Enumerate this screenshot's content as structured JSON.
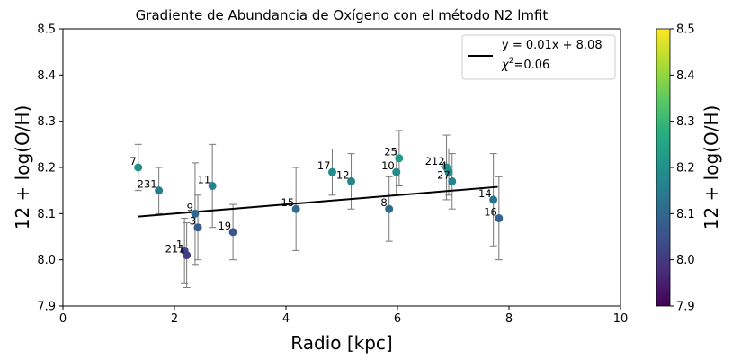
{
  "chart_data": {
    "type": "scatter",
    "title": "Gradiente de Abundancia de Oxígeno con el método N2 lmfit",
    "xlabel": "Radio [kpc]",
    "ylabel": "12 + log(O/H)",
    "xlim": [
      0,
      10
    ],
    "ylim": [
      7.9,
      8.5
    ],
    "xticks": [
      "0",
      "2",
      "4",
      "6",
      "8",
      "10"
    ],
    "yticks": [
      "7.9",
      "8.0",
      "8.1",
      "8.2",
      "8.3",
      "8.4",
      "8.5"
    ],
    "grid": false,
    "legend_position": "top-right",
    "fit": {
      "slope": 0.01,
      "intercept": 8.08,
      "label": "y = 0.01x + 8.08",
      "chi2_label": "=0.06",
      "chi2_symbol": "χ",
      "x_range": [
        1.35,
        7.8
      ]
    },
    "colorbar": {
      "label": "12 + log(O/H)",
      "range": [
        7.9,
        8.5
      ],
      "ticks": [
        "7.9",
        "8.0",
        "8.1",
        "8.2",
        "8.3",
        "8.4",
        "8.5"
      ],
      "colormap": "viridis"
    },
    "points": [
      {
        "label": "7",
        "x": 1.35,
        "y": 8.2,
        "yerr_low": 0.05,
        "yerr_high": 0.05
      },
      {
        "label": "231",
        "x": 1.72,
        "y": 8.15,
        "yerr_low": 0.05,
        "yerr_high": 0.05
      },
      {
        "label": "1",
        "x": 2.18,
        "y": 8.02,
        "yerr_low": 0.07,
        "yerr_high": 0.07
      },
      {
        "label": "211",
        "x": 2.22,
        "y": 8.01,
        "yerr_low": 0.07,
        "yerr_high": 0.07
      },
      {
        "label": "9",
        "x": 2.37,
        "y": 8.1,
        "yerr_low": 0.11,
        "yerr_high": 0.11
      },
      {
        "label": "3",
        "x": 2.42,
        "y": 8.07,
        "yerr_low": 0.07,
        "yerr_high": 0.07
      },
      {
        "label": "11",
        "x": 2.68,
        "y": 8.16,
        "yerr_low": 0.09,
        "yerr_high": 0.09
      },
      {
        "label": "19",
        "x": 3.05,
        "y": 8.06,
        "yerr_low": 0.06,
        "yerr_high": 0.06
      },
      {
        "label": "15",
        "x": 4.18,
        "y": 8.11,
        "yerr_low": 0.09,
        "yerr_high": 0.09
      },
      {
        "label": "17",
        "x": 4.83,
        "y": 8.19,
        "yerr_low": 0.05,
        "yerr_high": 0.05
      },
      {
        "label": "12",
        "x": 5.17,
        "y": 8.17,
        "yerr_low": 0.06,
        "yerr_high": 0.06
      },
      {
        "label": "8",
        "x": 5.85,
        "y": 8.11,
        "yerr_low": 0.07,
        "yerr_high": 0.07
      },
      {
        "label": "10",
        "x": 5.98,
        "y": 8.19,
        "yerr_low": 0.05,
        "yerr_high": 0.05
      },
      {
        "label": "25",
        "x": 6.03,
        "y": 8.22,
        "yerr_low": 0.06,
        "yerr_high": 0.06
      },
      {
        "label": "212",
        "x": 6.88,
        "y": 8.2,
        "yerr_low": 0.07,
        "yerr_high": 0.07
      },
      {
        "label": "4",
        "x": 6.92,
        "y": 8.19,
        "yerr_low": 0.05,
        "yerr_high": 0.05
      },
      {
        "label": "27",
        "x": 6.98,
        "y": 8.17,
        "yerr_low": 0.06,
        "yerr_high": 0.06
      },
      {
        "label": "14",
        "x": 7.72,
        "y": 8.13,
        "yerr_low": 0.1,
        "yerr_high": 0.1
      },
      {
        "label": "16",
        "x": 7.82,
        "y": 8.09,
        "yerr_low": 0.09,
        "yerr_high": 0.09
      }
    ]
  }
}
